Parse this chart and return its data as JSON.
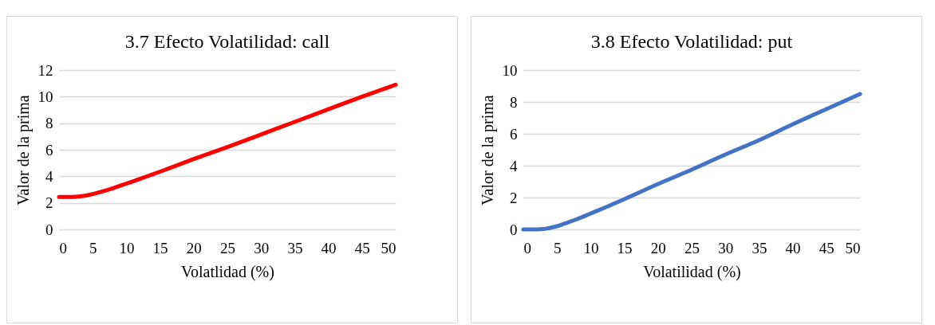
{
  "chart_data": [
    {
      "type": "line",
      "title": "3.7 Efecto Volatilidad: call",
      "xlabel": "Volatlidad (%)",
      "ylabel": "Valor de la prima",
      "x": [
        0,
        2,
        4,
        6,
        8,
        10,
        12,
        15,
        20,
        25,
        30,
        35,
        40,
        45,
        50
      ],
      "series": [
        {
          "color": "#ff0000",
          "values": [
            2.45,
            2.45,
            2.55,
            2.8,
            3.1,
            3.45,
            3.8,
            4.35,
            5.3,
            6.2,
            7.15,
            8.1,
            9.05,
            10.0,
            10.9
          ]
        }
      ],
      "xlim": [
        0,
        50
      ],
      "xticks": [
        0,
        5,
        10,
        15,
        20,
        25,
        30,
        35,
        40,
        45,
        50
      ],
      "ylim": [
        0,
        12
      ],
      "yticks": [
        0,
        2,
        4,
        6,
        8,
        10,
        12
      ],
      "grid": "y"
    },
    {
      "type": "line",
      "title": "3.8 Efecto Volatilidad: put",
      "xlabel": "Volatilidad (%)",
      "ylabel": "Valor de la prima",
      "x": [
        0,
        2,
        3,
        4,
        5,
        6,
        8,
        10,
        12,
        15,
        20,
        25,
        30,
        35,
        40,
        45,
        50
      ],
      "series": [
        {
          "color": "#4472c4",
          "values": [
            0,
            0,
            0.02,
            0.1,
            0.2,
            0.35,
            0.65,
            1.0,
            1.35,
            1.9,
            2.85,
            3.75,
            4.7,
            5.6,
            6.6,
            7.55,
            8.5
          ]
        }
      ],
      "xlim": [
        0,
        50
      ],
      "xticks": [
        0,
        5,
        10,
        15,
        20,
        25,
        30,
        35,
        40,
        45,
        50
      ],
      "ylim": [
        0,
        10
      ],
      "yticks": [
        0,
        2,
        4,
        6,
        8,
        10
      ],
      "grid": "y"
    }
  ]
}
